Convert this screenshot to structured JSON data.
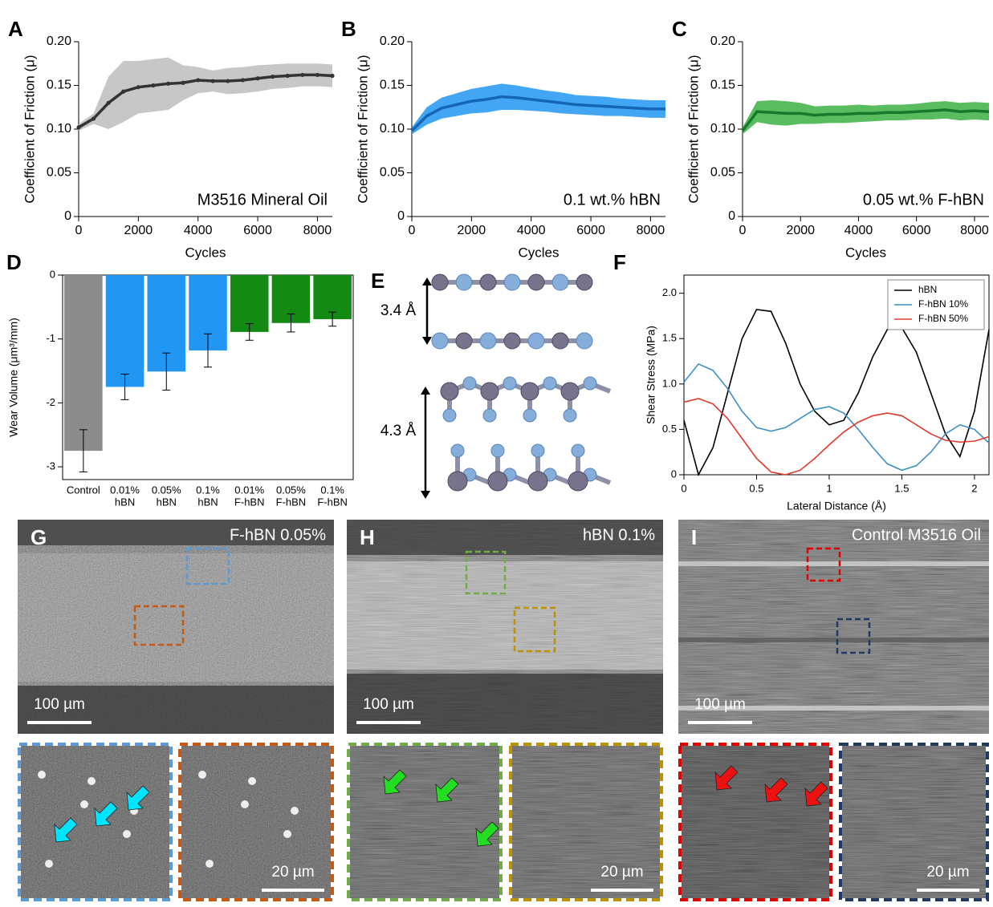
{
  "chart_data": [
    {
      "type": "line",
      "panel": "A",
      "xlabel": "Cycles",
      "ylabel": "Coefficient of Friction (μ)",
      "annotation": "M3516 Mineral Oil",
      "markers": true,
      "x": [
        0,
        500,
        1000,
        1500,
        2000,
        2500,
        3000,
        3500,
        4000,
        4500,
        5000,
        5500,
        6000,
        6500,
        7000,
        7500,
        8000,
        8500
      ],
      "series": [
        {
          "color": "#333333",
          "band_color": "#bdbdbd",
          "values": [
            0.102,
            0.112,
            0.13,
            0.143,
            0.148,
            0.15,
            0.152,
            0.153,
            0.156,
            0.155,
            0.155,
            0.156,
            0.158,
            0.16,
            0.161,
            0.162,
            0.162,
            0.161
          ],
          "errors": [
            0.004,
            0.006,
            0.03,
            0.035,
            0.03,
            0.03,
            0.03,
            0.02,
            0.015,
            0.012,
            0.015,
            0.015,
            0.015,
            0.014,
            0.014,
            0.013,
            0.013,
            0.013
          ]
        }
      ],
      "xlim": [
        0,
        8500
      ],
      "xticks": [
        0,
        2000,
        4000,
        6000,
        8000
      ],
      "ylim": [
        0,
        0.2
      ],
      "yticks": [
        0,
        0.05,
        {
          "value": 0.1,
          "label": "0.10"
        },
        0.15,
        {
          "value": 0.2,
          "label": "0.20"
        }
      ]
    },
    {
      "type": "line",
      "panel": "B",
      "xlabel": "Cycles",
      "ylabel": "Coefficient of Friction (μ)",
      "annotation": "0.1 wt.% hBN",
      "x": [
        0,
        500,
        1000,
        1500,
        2000,
        2500,
        3000,
        3500,
        4000,
        4500,
        5000,
        5500,
        6000,
        6500,
        7000,
        7500,
        8000,
        8500
      ],
      "series": [
        {
          "color": "#1565b5",
          "band_color": "#2196f3",
          "values": [
            0.098,
            0.115,
            0.124,
            0.128,
            0.132,
            0.134,
            0.137,
            0.136,
            0.134,
            0.132,
            0.13,
            0.128,
            0.127,
            0.126,
            0.125,
            0.124,
            0.123,
            0.123
          ],
          "errors": [
            0.004,
            0.01,
            0.012,
            0.013,
            0.014,
            0.015,
            0.015,
            0.014,
            0.013,
            0.012,
            0.012,
            0.011,
            0.011,
            0.011,
            0.01,
            0.01,
            0.01,
            0.01
          ]
        }
      ],
      "xlim": [
        0,
        8500
      ],
      "xticks": [
        0,
        2000,
        4000,
        6000,
        8000
      ],
      "ylim": [
        0,
        0.2
      ],
      "yticks": [
        0,
        0.05,
        {
          "value": 0.1,
          "label": "0.10"
        },
        0.15,
        {
          "value": 0.2,
          "label": "0.20"
        }
      ]
    },
    {
      "type": "line",
      "panel": "C",
      "xlabel": "Cycles",
      "ylabel": "Coefficient of Friction (μ)",
      "annotation": "0.05 wt.% F-hBN",
      "x": [
        0,
        500,
        1000,
        1500,
        2000,
        2500,
        3000,
        3500,
        4000,
        4500,
        5000,
        5500,
        6000,
        6500,
        7000,
        7500,
        8000,
        8500
      ],
      "series": [
        {
          "color": "#167a2c",
          "band_color": "#3cb043",
          "values": [
            0.098,
            0.12,
            0.119,
            0.118,
            0.118,
            0.116,
            0.117,
            0.117,
            0.118,
            0.118,
            0.119,
            0.119,
            0.12,
            0.121,
            0.122,
            0.12,
            0.121,
            0.12
          ],
          "errors": [
            0.004,
            0.012,
            0.014,
            0.014,
            0.012,
            0.01,
            0.01,
            0.01,
            0.01,
            0.009,
            0.009,
            0.009,
            0.009,
            0.01,
            0.01,
            0.01,
            0.01,
            0.01
          ]
        }
      ],
      "xlim": [
        0,
        8500
      ],
      "xticks": [
        0,
        2000,
        4000,
        6000,
        8000
      ],
      "ylim": [
        0,
        0.2
      ],
      "yticks": [
        0,
        0.05,
        {
          "value": 0.1,
          "label": "0.10"
        },
        0.15,
        {
          "value": 0.2,
          "label": "0.20"
        }
      ]
    },
    {
      "type": "bar",
      "panel": "D",
      "ylabel": "Wear Volume (μm³/mm)",
      "categories": [
        [
          "Control"
        ],
        [
          "0.01%",
          "hBN"
        ],
        [
          "0.05%",
          "hBN"
        ],
        [
          "0.1%",
          "hBN"
        ],
        [
          "0.01%",
          "F-hBN"
        ],
        [
          "0.05%",
          "F-hBN"
        ],
        [
          "0.1%",
          "F-hBN"
        ]
      ],
      "values": [
        -2.75,
        -1.75,
        -1.51,
        -1.18,
        -0.89,
        -0.75,
        -0.69
      ],
      "errors": [
        0.33,
        0.2,
        0.29,
        0.26,
        0.13,
        0.14,
        0.11
      ],
      "colors": [
        "#8c8c8c",
        "#2196f3",
        "#2196f3",
        "#2196f3",
        "#138a13",
        "#138a13",
        "#138a13"
      ],
      "ylim": [
        -3.2,
        0
      ],
      "yticks": [
        -3,
        -2,
        -1,
        0
      ]
    },
    {
      "type": "line",
      "panel": "F",
      "xlabel": "Lateral Distance (Å)",
      "ylabel": "Shear Stress (MPa)",
      "legend": "upper right",
      "x": [
        0,
        0.1,
        0.2,
        0.3,
        0.4,
        0.5,
        0.6,
        0.7,
        0.8,
        0.9,
        1.0,
        1.1,
        1.2,
        1.3,
        1.4,
        1.5,
        1.6,
        1.7,
        1.8,
        1.9,
        2.0,
        2.1
      ],
      "series": [
        {
          "name": "hBN",
          "color": "#000000",
          "values": [
            0.6,
            0,
            0.3,
            0.9,
            1.5,
            1.82,
            1.8,
            1.45,
            1.0,
            0.7,
            0.55,
            0.6,
            0.9,
            1.3,
            1.6,
            1.62,
            1.35,
            0.9,
            0.45,
            0.2,
            0.7,
            1.6
          ]
        },
        {
          "name": "F-hBN 10%",
          "color": "#3d8fc4",
          "values": [
            1.02,
            1.22,
            1.15,
            0.95,
            0.7,
            0.52,
            0.48,
            0.52,
            0.62,
            0.72,
            0.75,
            0.68,
            0.5,
            0.3,
            0.12,
            0.05,
            0.1,
            0.25,
            0.45,
            0.55,
            0.5,
            0.35
          ]
        },
        {
          "name": "F-hBN 50%",
          "color": "#e0382c",
          "values": [
            0.8,
            0.84,
            0.78,
            0.62,
            0.4,
            0.18,
            0.03,
            0,
            0.05,
            0.18,
            0.33,
            0.47,
            0.58,
            0.65,
            0.68,
            0.65,
            0.55,
            0.45,
            0.38,
            0.36,
            0.37,
            0.42
          ]
        }
      ],
      "xlim": [
        0,
        2.1
      ],
      "xticks": [
        0,
        0.5,
        1,
        1.5,
        2
      ],
      "ylim": [
        0,
        2.2
      ],
      "yticks": [
        0,
        0.5,
        {
          "value": 1,
          "label": "1.0"
        },
        1.5,
        {
          "value": 2,
          "label": "2.0"
        }
      ]
    }
  ],
  "diagram": {
    "panel": "E",
    "spacings": [
      "3.4 Å",
      "4.3 Å"
    ]
  },
  "images": [
    {
      "panel": "G",
      "label": "F-hBN 0.05%",
      "scale": "100 µm",
      "zoom_scale": "20 µm"
    },
    {
      "panel": "H",
      "label": "hBN 0.1%",
      "scale": "100 µm",
      "zoom_scale": "20 µm"
    },
    {
      "panel": "I",
      "label": "Control M3516 Oil",
      "scale": "100 µm",
      "zoom_scale": "20 µm"
    }
  ]
}
